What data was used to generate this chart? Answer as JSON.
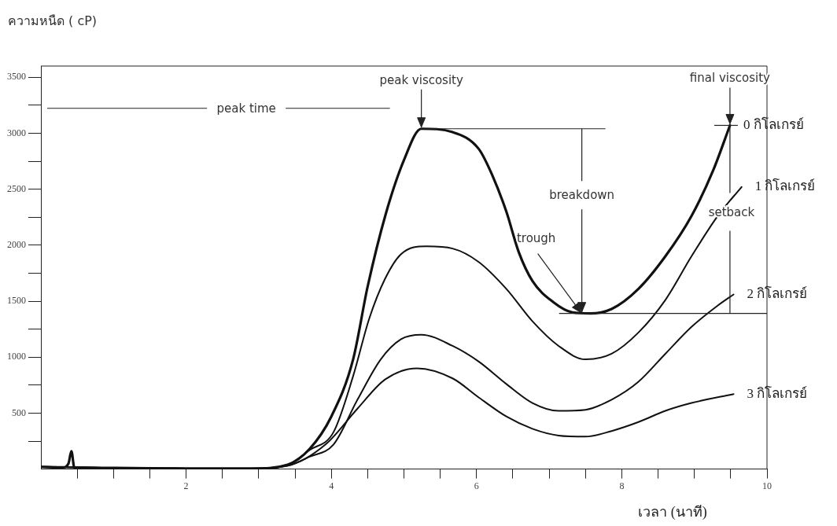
{
  "chart_data": {
    "type": "line",
    "xlabel": "เวลา (นาที)",
    "ylabel": "ความหนืด ( cP)",
    "xlim": [
      0,
      10
    ],
    "ylim": [
      0,
      3600
    ],
    "xticks": [
      {
        "value": 0.5,
        "label": null
      },
      {
        "value": 1,
        "label": null
      },
      {
        "value": 1.5,
        "label": null
      },
      2,
      {
        "value": 2.5,
        "label": null
      },
      {
        "value": 3,
        "label": null
      },
      {
        "value": 3.5,
        "label": null
      },
      4,
      {
        "value": 4.5,
        "label": null
      },
      {
        "value": 5,
        "label": null
      },
      {
        "value": 5.5,
        "label": null
      },
      6,
      {
        "value": 6.5,
        "label": null
      },
      {
        "value": 7,
        "label": null
      },
      {
        "value": 7.5,
        "label": null
      },
      8,
      {
        "value": 8.5,
        "label": null
      },
      {
        "value": 9,
        "label": null
      },
      {
        "value": 9.5,
        "label": null
      },
      10
    ],
    "yticks": [
      {
        "value": 250,
        "label": null
      },
      500,
      {
        "value": 750,
        "label": null
      },
      1000,
      {
        "value": 1250,
        "label": null
      },
      1500,
      {
        "value": 1750,
        "label": null
      },
      2000,
      {
        "value": 2250,
        "label": null
      },
      2500,
      {
        "value": 2750,
        "label": null
      },
      3000,
      {
        "value": 3250,
        "label": null
      },
      3500
    ],
    "grid": false,
    "legend": false,
    "marker": "none",
    "line_style": "solid",
    "series": [
      {
        "name": "0 กิโลเกรย์",
        "color": "#111111",
        "x": [
          0,
          0.3,
          0.38,
          0.42,
          0.46,
          1,
          2,
          2.9,
          3.4,
          3.7,
          4.0,
          4.3,
          4.5,
          4.75,
          5.0,
          5.24,
          5.67,
          6.03,
          6.22,
          6.41,
          6.58,
          6.77,
          7.06,
          7.32,
          7.57,
          7.86,
          8.23,
          8.6,
          8.96,
          9.26,
          9.49
        ],
        "values": [
          20,
          15,
          50,
          160,
          15,
          10,
          5,
          5,
          40,
          180,
          470,
          980,
          1630,
          2280,
          2760,
          3040,
          3010,
          2860,
          2620,
          2300,
          1940,
          1680,
          1490,
          1400,
          1390,
          1430,
          1610,
          1900,
          2260,
          2670,
          3070
        ]
      },
      {
        "name": "1 กิโลเกรย์",
        "color": "#111111",
        "x": [
          0,
          1,
          2,
          2.9,
          3.4,
          3.7,
          4.03,
          4.3,
          4.52,
          4.74,
          4.96,
          5.31,
          5.67,
          6.03,
          6.41,
          6.77,
          7.13,
          7.5,
          7.86,
          8.23,
          8.6,
          8.96,
          9.32,
          9.65
        ],
        "values": [
          20,
          10,
          5,
          5,
          40,
          170,
          330,
          830,
          1340,
          1700,
          1920,
          1990,
          1970,
          1850,
          1610,
          1320,
          1100,
          980,
          1030,
          1220,
          1510,
          1900,
          2260,
          2520
        ]
      },
      {
        "name": "2 กิโลเกรย์",
        "color": "#111111",
        "x": [
          0,
          1,
          2,
          2.9,
          3.4,
          3.7,
          4.03,
          4.36,
          4.68,
          4.96,
          5.24,
          5.67,
          6.03,
          6.41,
          6.77,
          7.13,
          7.5,
          7.86,
          8.23,
          8.6,
          8.96,
          9.32,
          9.54
        ],
        "values": [
          20,
          10,
          5,
          5,
          30,
          110,
          220,
          620,
          980,
          1160,
          1200,
          1100,
          960,
          760,
          590,
          520,
          530,
          620,
          780,
          1030,
          1270,
          1460,
          1560
        ]
      },
      {
        "name": "3 กิโลเกรย์",
        "color": "#111111",
        "x": [
          0,
          1,
          2,
          2.9,
          3.4,
          3.92,
          4.36,
          4.74,
          5.18,
          5.67,
          6.03,
          6.41,
          6.77,
          7.13,
          7.5,
          7.86,
          8.23,
          8.6,
          8.96,
          9.54
        ],
        "values": [
          20,
          10,
          5,
          5,
          30,
          220,
          540,
          800,
          900,
          810,
          640,
          470,
          360,
          300,
          290,
          340,
          420,
          520,
          590,
          670
        ]
      }
    ],
    "annotations": [
      "peak time",
      {
        "text": "peak viscosity",
        "x": 5.24,
        "y": 3040
      },
      {
        "text": "final viscosity",
        "x": 9.49,
        "y": 3070
      },
      {
        "text": "breakdown",
        "x": 7.45,
        "y": 1390
      },
      {
        "text": "trough",
        "x": 7.45,
        "y": 1390
      },
      {
        "text": "setback",
        "x": 9.49,
        "y": 3070
      }
    ]
  }
}
